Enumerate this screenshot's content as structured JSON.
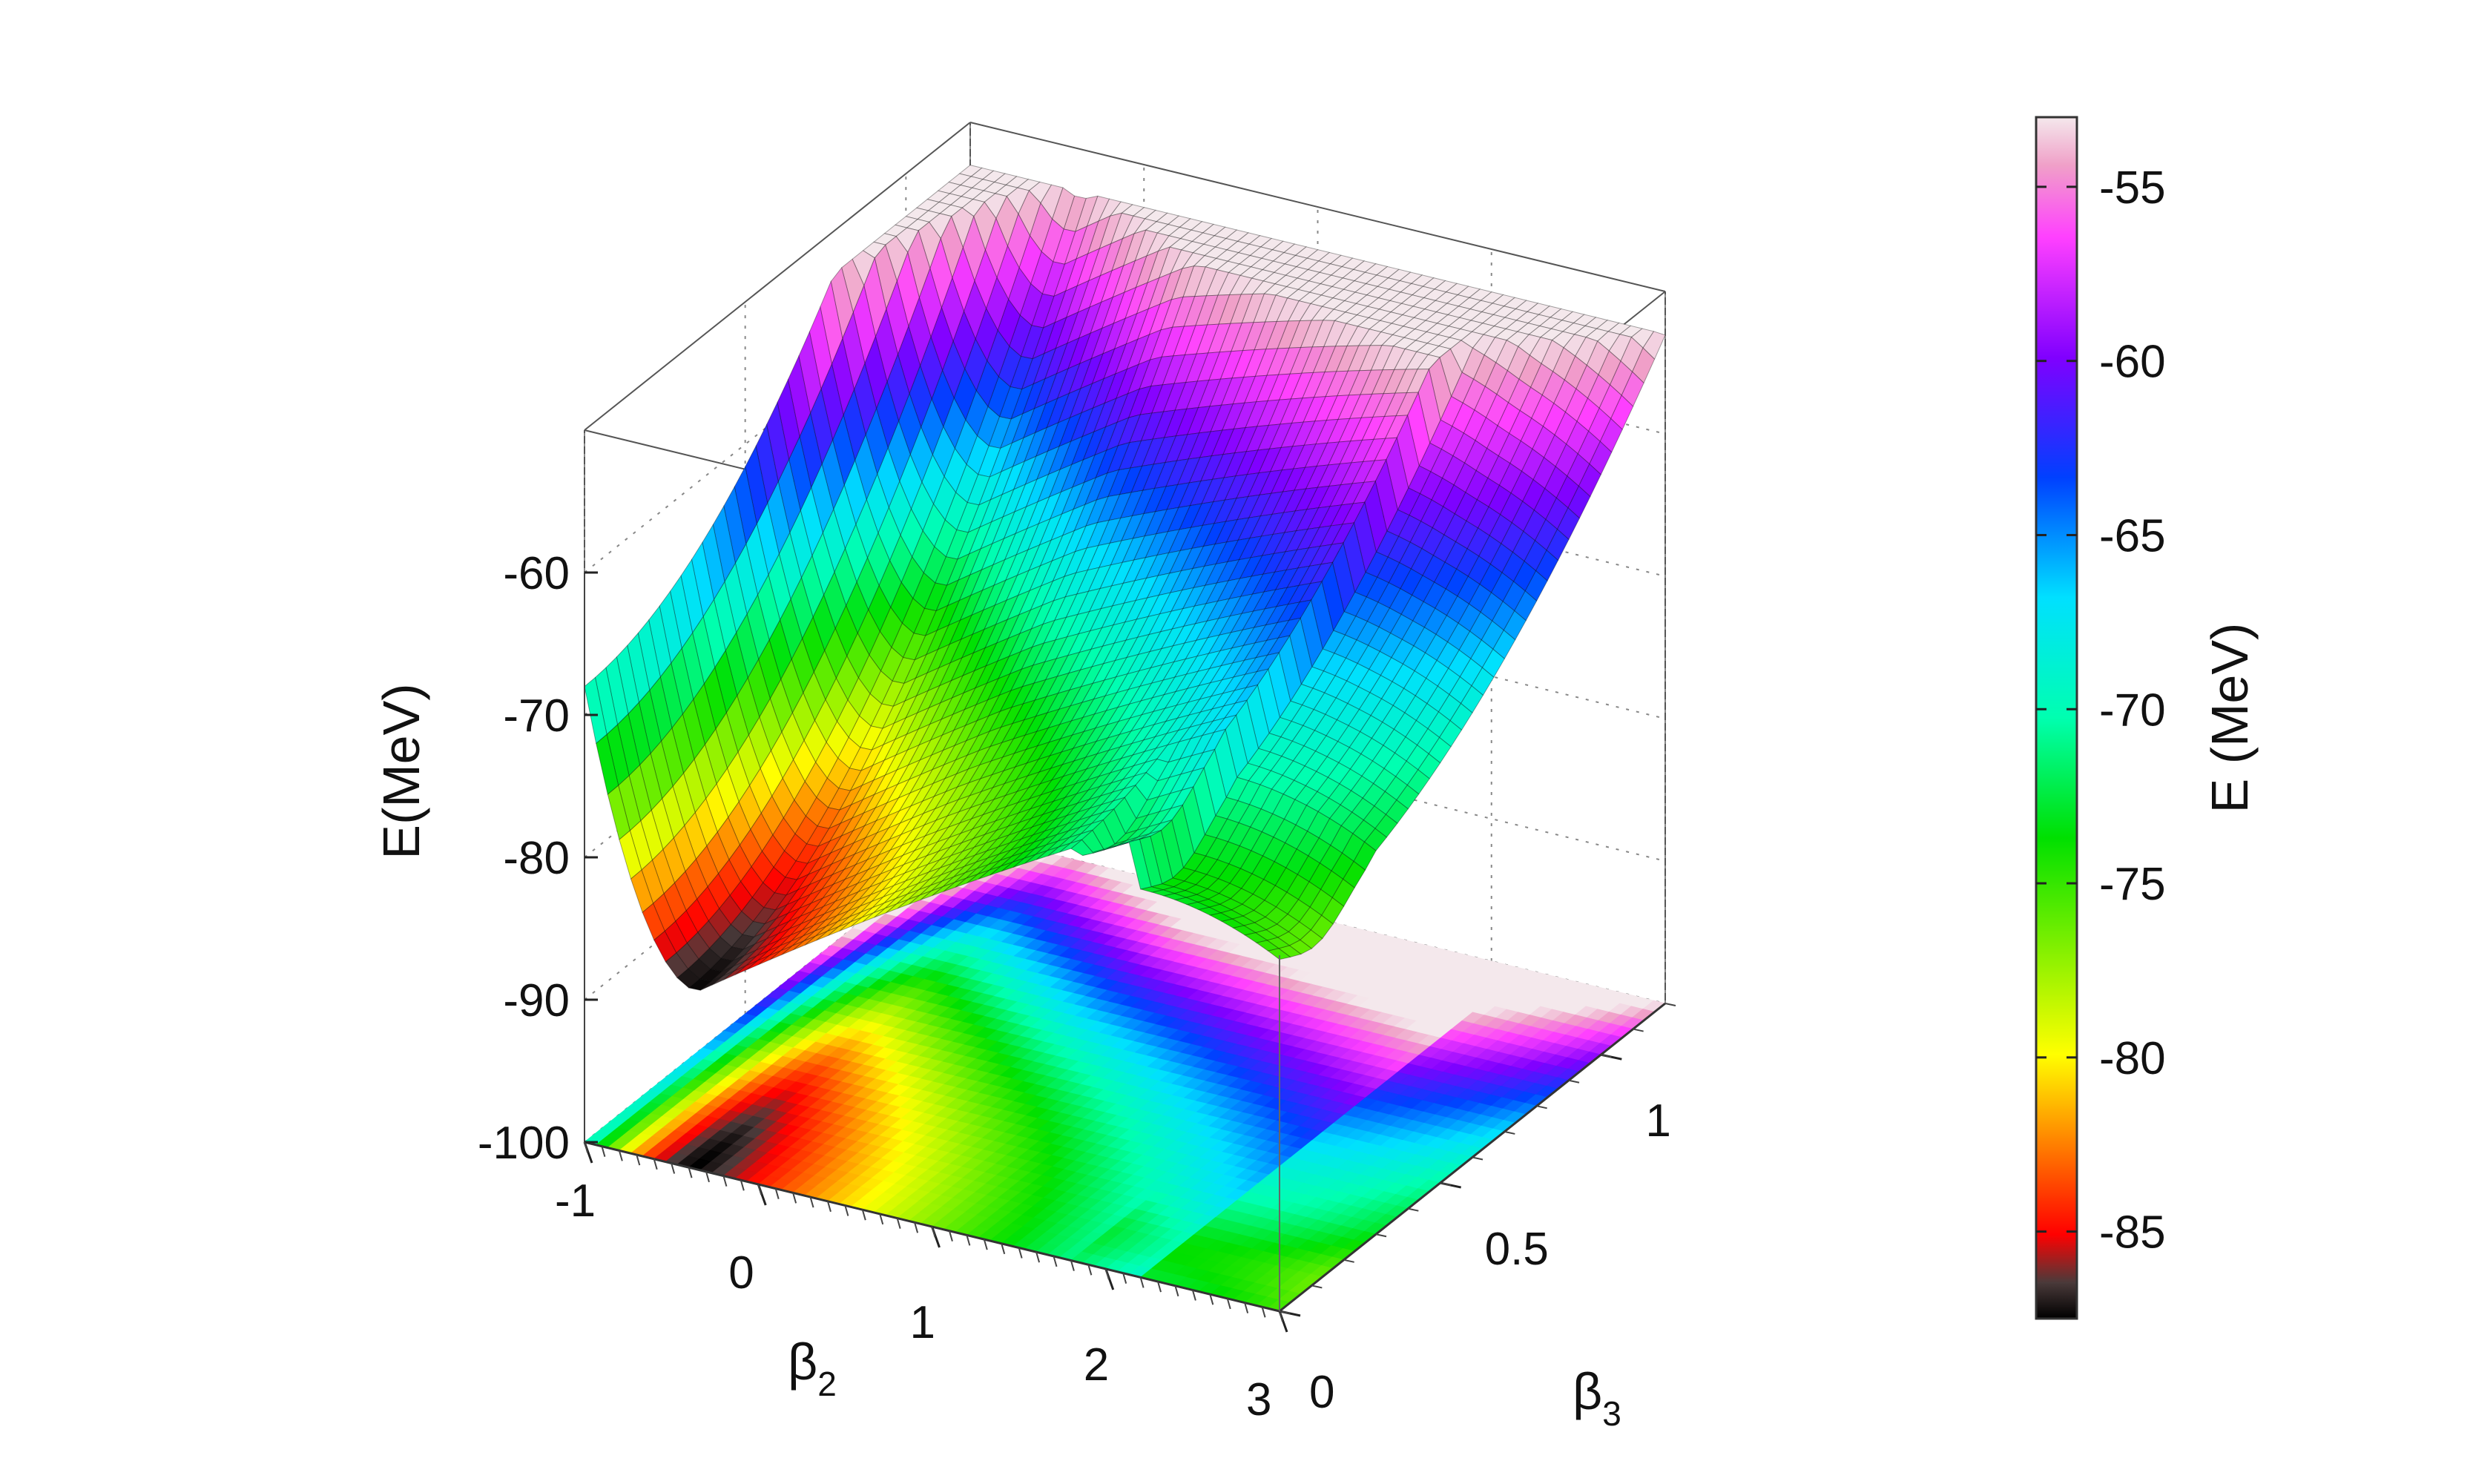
{
  "chart_data": {
    "type": "surface3d",
    "xlabel": "β2",
    "xlabel_parts": {
      "base": "β",
      "sub": "2"
    },
    "ylabel": "β3",
    "ylabel_parts": {
      "base": "β",
      "sub": "3"
    },
    "zlabel": "E(MeV)",
    "x_range": [
      -1,
      3
    ],
    "y_range": [
      0,
      1.2
    ],
    "z_range": [
      -100,
      -50
    ],
    "x_ticks": [
      -1,
      0,
      1,
      2,
      3
    ],
    "y_ticks": [
      0,
      0.5,
      1
    ],
    "z_ticks": [
      -100,
      -90,
      -80,
      -70,
      -60
    ],
    "x_tick_labels": [
      "-1",
      "0",
      "1",
      "2",
      "3"
    ],
    "y_tick_labels": [
      "0",
      "0.5",
      "1"
    ],
    "z_tick_labels": [
      "-100",
      "-90",
      "-80",
      "-70",
      "-60"
    ],
    "grid": true,
    "projected_contour_plane_z": -100,
    "minimum": {
      "beta2": -0.35,
      "beta3": 0.0,
      "E": -87.5
    },
    "surface_samples": [
      {
        "beta2": -1,
        "beta3": 0,
        "E": -68
      },
      {
        "beta2": -0.35,
        "beta3": 0,
        "E": -87.5
      },
      {
        "beta2": 0.5,
        "beta3": 0,
        "E": -84
      },
      {
        "beta2": 1,
        "beta3": 0,
        "E": -79
      },
      {
        "beta2": 2,
        "beta3": 0,
        "E": -72
      },
      {
        "beta2": 3,
        "beta3": 0,
        "E": -80
      },
      {
        "beta2": -1,
        "beta3": 1.2,
        "E": -53
      },
      {
        "beta2": 1,
        "beta3": 1.2,
        "E": -60
      },
      {
        "beta2": 3,
        "beta3": 1.2,
        "E": -66
      }
    ],
    "colorbar": {
      "label": "E (MeV)",
      "range": [
        -87.5,
        -53
      ],
      "ticks": [
        -85,
        -80,
        -75,
        -70,
        -65,
        -60,
        -55
      ],
      "tick_labels": [
        "-85",
        "-80",
        "-75",
        "-70",
        "-65",
        "-60",
        "-55"
      ],
      "colormap_stops": [
        {
          "v": 0.0,
          "color": "#000000"
        },
        {
          "v": 0.03,
          "color": "#4a3a3a"
        },
        {
          "v": 0.07,
          "color": "#ff0000"
        },
        {
          "v": 0.22,
          "color": "#ffff00"
        },
        {
          "v": 0.4,
          "color": "#00e000"
        },
        {
          "v": 0.5,
          "color": "#00ffb0"
        },
        {
          "v": 0.6,
          "color": "#00e0ff"
        },
        {
          "v": 0.7,
          "color": "#0040ff"
        },
        {
          "v": 0.8,
          "color": "#8000ff"
        },
        {
          "v": 0.9,
          "color": "#ff40ff"
        },
        {
          "v": 0.96,
          "color": "#f0a0c8"
        },
        {
          "v": 1.0,
          "color": "#f4e8ec"
        }
      ]
    }
  }
}
